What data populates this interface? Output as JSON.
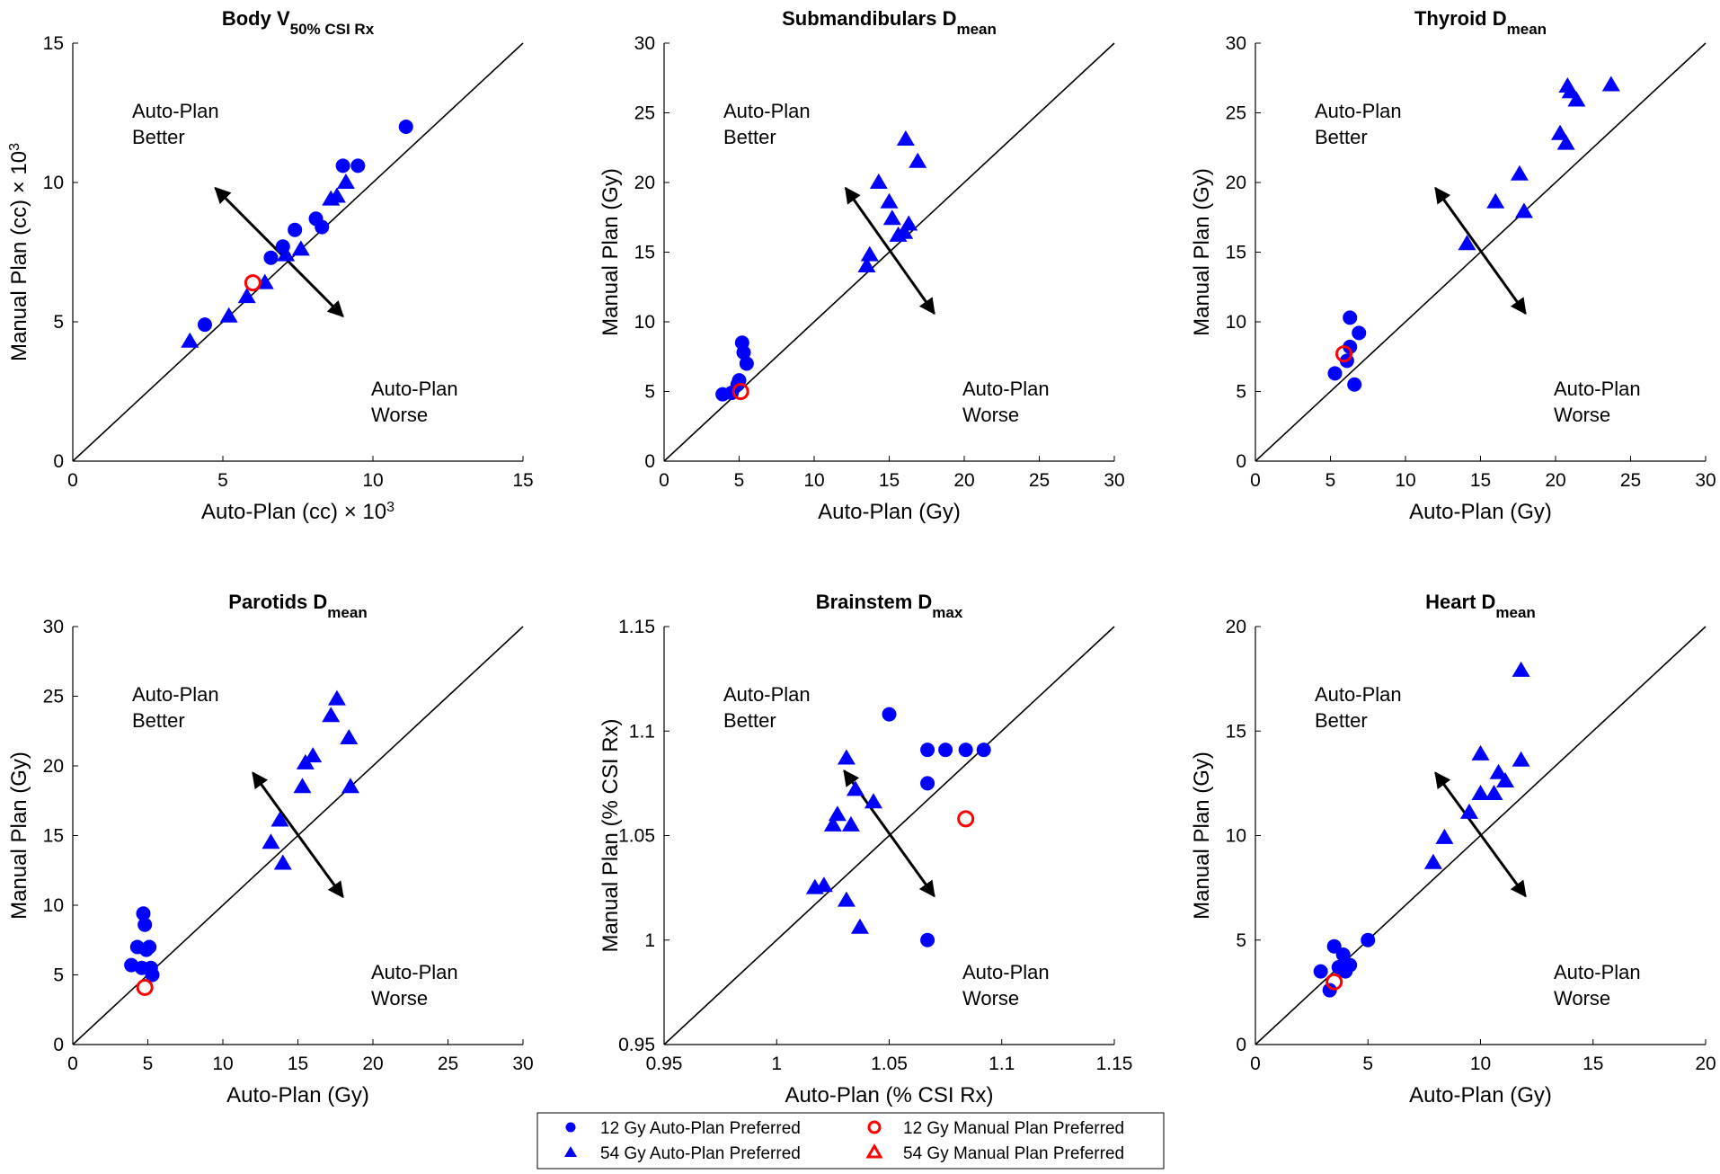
{
  "colors": {
    "auto_preferred": "#0000ff",
    "manual_preferred": "#ff0000",
    "axis": "#000000"
  },
  "legend": {
    "items": [
      {
        "label": "12 Gy Auto-Plan Preferred",
        "marker": "circle",
        "fill": "#0000ff",
        "filled": true
      },
      {
        "label": "12 Gy Manual Plan Preferred",
        "marker": "circle",
        "fill": "#ff0000",
        "filled": false
      },
      {
        "label": "54 Gy Auto-Plan Preferred",
        "marker": "triangle",
        "fill": "#0000ff",
        "filled": true
      },
      {
        "label": "54 Gy Manual Plan Preferred",
        "marker": "triangle",
        "fill": "#ff0000",
        "filled": false
      }
    ]
  },
  "chart_data": [
    {
      "type": "scatter",
      "title": "Body V",
      "title_sub": "50% CSI Rx",
      "xlabel": "Auto-Plan (cc) × 10",
      "xlabel_sup": "3",
      "ylabel": "Manual Plan (cc) × 10",
      "ylabel_sup": "3",
      "xlim": [
        0,
        15
      ],
      "ylim": [
        0,
        15
      ],
      "xticks": [
        0,
        5,
        10,
        15
      ],
      "yticks": [
        0,
        5,
        10,
        15
      ],
      "xtick_labels": [
        "0",
        "5",
        "10",
        "15"
      ],
      "ytick_labels": [
        "0",
        "5",
        "10",
        "15"
      ],
      "annot_better": [
        "Auto-Plan",
        "Better"
      ],
      "annot_worse": [
        "Auto-Plan",
        "Worse"
      ],
      "arrow": {
        "center": [
          6.75,
          6.75
        ],
        "upper_left": [
          4.75,
          9.8
        ],
        "lower_right": [
          9.0,
          5.2
        ]
      },
      "series": [
        {
          "name": "12 Gy Auto-Plan Preferred",
          "marker": "circle",
          "filled": true,
          "x": [
            4.4,
            6.6,
            7.0,
            7.4,
            8.1,
            8.3,
            9.0,
            9.5,
            11.1
          ],
          "y": [
            4.9,
            7.3,
            7.7,
            8.3,
            8.7,
            8.4,
            10.6,
            10.6,
            12.0
          ]
        },
        {
          "name": "54 Gy Auto-Plan Preferred",
          "marker": "triangle",
          "filled": true,
          "x": [
            3.9,
            5.2,
            5.8,
            6.4,
            7.1,
            7.6,
            8.6,
            8.8,
            9.1
          ],
          "y": [
            4.3,
            5.2,
            5.9,
            6.4,
            7.4,
            7.6,
            9.4,
            9.5,
            10.0
          ]
        },
        {
          "name": "12 Gy Manual Plan Preferred",
          "marker": "circle",
          "filled": false,
          "x": [
            6.0
          ],
          "y": [
            6.4
          ]
        }
      ]
    },
    {
      "type": "scatter",
      "title": "Submandibulars D",
      "title_sub": "mean",
      "xlabel": "Auto-Plan (Gy)",
      "xlabel_sup": "",
      "ylabel": "Manual Plan (Gy)",
      "ylabel_sup": "",
      "xlim": [
        0,
        30
      ],
      "ylim": [
        0,
        30
      ],
      "xticks": [
        0,
        5,
        10,
        15,
        20,
        25,
        30
      ],
      "yticks": [
        0,
        5,
        10,
        15,
        20,
        25,
        30
      ],
      "xtick_labels": [
        "0",
        "5",
        "10",
        "15",
        "20",
        "25",
        "30"
      ],
      "ytick_labels": [
        "0",
        "5",
        "10",
        "15",
        "20",
        "25",
        "30"
      ],
      "annot_better": [
        "Auto-Plan",
        "Better"
      ],
      "annot_worse": [
        "Auto-Plan",
        "Worse"
      ],
      "arrow": {
        "center": [
          15,
          15
        ],
        "upper_left": [
          12.1,
          19.6
        ],
        "lower_right": [
          18.0,
          10.6
        ]
      },
      "series": [
        {
          "name": "12 Gy Auto-Plan Preferred",
          "marker": "circle",
          "filled": true,
          "x": [
            3.9,
            4.5,
            4.9,
            5.0,
            5.2,
            5.3,
            5.5
          ],
          "y": [
            4.8,
            4.9,
            5.5,
            5.8,
            8.5,
            7.8,
            7.0
          ]
        },
        {
          "name": "54 Gy Auto-Plan Preferred",
          "marker": "triangle",
          "filled": true,
          "x": [
            13.5,
            13.7,
            14.3,
            15.0,
            15.2,
            15.6,
            16.0,
            16.1,
            16.3,
            16.9
          ],
          "y": [
            14.0,
            14.8,
            20.0,
            18.6,
            17.4,
            16.2,
            16.4,
            23.1,
            17.0,
            21.5
          ]
        },
        {
          "name": "12 Gy Manual Plan Preferred",
          "marker": "circle",
          "filled": false,
          "x": [
            5.1
          ],
          "y": [
            5.0
          ]
        }
      ]
    },
    {
      "type": "scatter",
      "title": "Thyroid D",
      "title_sub": "mean",
      "xlabel": "Auto-Plan (Gy)",
      "xlabel_sup": "",
      "ylabel": "Manual Plan (Gy)",
      "ylabel_sup": "",
      "xlim": [
        0,
        30
      ],
      "ylim": [
        0,
        30
      ],
      "xticks": [
        0,
        5,
        10,
        15,
        20,
        25,
        30
      ],
      "yticks": [
        0,
        5,
        10,
        15,
        20,
        25,
        30
      ],
      "xtick_labels": [
        "0",
        "5",
        "10",
        "15",
        "20",
        "25",
        "30"
      ],
      "ytick_labels": [
        "0",
        "5",
        "10",
        "15",
        "20",
        "25",
        "30"
      ],
      "annot_better": [
        "Auto-Plan",
        "Better"
      ],
      "annot_worse": [
        "Auto-Plan",
        "Worse"
      ],
      "arrow": {
        "center": [
          15,
          15
        ],
        "upper_left": [
          12.0,
          19.6
        ],
        "lower_right": [
          18.0,
          10.6
        ]
      },
      "series": [
        {
          "name": "12 Gy Auto-Plan Preferred",
          "marker": "circle",
          "filled": true,
          "x": [
            5.3,
            6.1,
            6.3,
            6.3,
            6.6,
            6.9
          ],
          "y": [
            6.3,
            7.2,
            10.3,
            8.2,
            5.5,
            9.2
          ]
        },
        {
          "name": "54 Gy Auto-Plan Preferred",
          "marker": "triangle",
          "filled": true,
          "x": [
            14.1,
            16.0,
            17.6,
            17.9,
            20.3,
            20.7,
            20.8,
            21.0,
            21.4,
            23.7
          ],
          "y": [
            15.6,
            18.6,
            20.6,
            17.9,
            23.5,
            22.8,
            26.9,
            26.5,
            25.9,
            27.0
          ]
        },
        {
          "name": "12 Gy Manual Plan Preferred",
          "marker": "circle",
          "filled": false,
          "x": [
            5.9
          ],
          "y": [
            7.7
          ]
        }
      ]
    },
    {
      "type": "scatter",
      "title": "Parotids D",
      "title_sub": "mean",
      "xlabel": "Auto-Plan (Gy)",
      "xlabel_sup": "",
      "ylabel": "Manual Plan (Gy)",
      "ylabel_sup": "",
      "xlim": [
        0,
        30
      ],
      "ylim": [
        0,
        30
      ],
      "xticks": [
        0,
        5,
        10,
        15,
        20,
        25,
        30
      ],
      "yticks": [
        0,
        5,
        10,
        15,
        20,
        25,
        30
      ],
      "xtick_labels": [
        "0",
        "5",
        "10",
        "15",
        "20",
        "25",
        "30"
      ],
      "ytick_labels": [
        "0",
        "5",
        "10",
        "15",
        "20",
        "25",
        "30"
      ],
      "annot_better": [
        "Auto-Plan",
        "Better"
      ],
      "annot_worse": [
        "Auto-Plan",
        "Worse"
      ],
      "arrow": {
        "center": [
          15,
          15
        ],
        "upper_left": [
          12.0,
          19.5
        ],
        "lower_right": [
          18.0,
          10.6
        ]
      },
      "series": [
        {
          "name": "12 Gy Auto-Plan Preferred",
          "marker": "circle",
          "filled": true,
          "x": [
            3.9,
            4.3,
            4.6,
            4.7,
            4.8,
            4.9,
            5.1,
            5.2,
            5.3
          ],
          "y": [
            5.7,
            7.0,
            5.5,
            9.4,
            8.6,
            6.8,
            7.0,
            5.5,
            5.0
          ]
        },
        {
          "name": "54 Gy Auto-Plan Preferred",
          "marker": "triangle",
          "filled": true,
          "x": [
            13.2,
            13.8,
            14.0,
            15.3,
            15.5,
            16.0,
            17.2,
            17.6,
            18.4,
            18.5
          ],
          "y": [
            14.5,
            16.1,
            13.0,
            18.5,
            20.2,
            20.7,
            23.6,
            24.8,
            22.0,
            18.5
          ]
        },
        {
          "name": "12 Gy Manual Plan Preferred",
          "marker": "circle",
          "filled": false,
          "x": [
            4.8
          ],
          "y": [
            4.1
          ]
        }
      ]
    },
    {
      "type": "scatter",
      "title": "Brainstem D",
      "title_sub": "max",
      "xlabel": "Auto-Plan (% CSI Rx)",
      "xlabel_sup": "",
      "ylabel": "Manual Plan (% CSI Rx)",
      "ylabel_sup": "",
      "xlim": [
        0.95,
        1.15
      ],
      "ylim": [
        0.95,
        1.15
      ],
      "xticks": [
        0.95,
        1.0,
        1.05,
        1.1,
        1.15
      ],
      "yticks": [
        0.95,
        1.0,
        1.05,
        1.1,
        1.15
      ],
      "xtick_labels": [
        "0.95",
        "1",
        "1.05",
        "1.1",
        "1.15"
      ],
      "ytick_labels": [
        "0.95",
        "1",
        "1.05",
        "1.1",
        "1.15"
      ],
      "annot_better": [
        "Auto-Plan",
        "Better"
      ],
      "annot_worse": [
        "Auto-Plan",
        "Worse"
      ],
      "arrow": {
        "center": [
          1.05,
          1.05
        ],
        "upper_left": [
          1.03,
          1.081
        ],
        "lower_right": [
          1.07,
          1.021
        ]
      },
      "series": [
        {
          "name": "12 Gy Auto-Plan Preferred",
          "marker": "circle",
          "filled": true,
          "x": [
            1.05,
            1.067,
            1.067,
            1.075,
            1.084,
            1.092,
            1.067
          ],
          "y": [
            1.108,
            1.091,
            1.075,
            1.091,
            1.091,
            1.091,
            1.0
          ]
        },
        {
          "name": "54 Gy Auto-Plan Preferred",
          "marker": "triangle",
          "filled": true,
          "x": [
            1.017,
            1.021,
            1.025,
            1.027,
            1.031,
            1.031,
            1.033,
            1.035,
            1.037,
            1.043
          ],
          "y": [
            1.025,
            1.026,
            1.055,
            1.06,
            1.087,
            1.019,
            1.055,
            1.072,
            1.006,
            1.066
          ]
        },
        {
          "name": "12 Gy Manual Plan Preferred",
          "marker": "circle",
          "filled": false,
          "x": [
            1.084
          ],
          "y": [
            1.058
          ]
        }
      ]
    },
    {
      "type": "scatter",
      "title": "Heart D",
      "title_sub": "mean",
      "xlabel": "Auto-Plan (Gy)",
      "xlabel_sup": "",
      "ylabel": "Manual Plan (Gy)",
      "ylabel_sup": "",
      "xlim": [
        0,
        20
      ],
      "ylim": [
        0,
        20
      ],
      "xticks": [
        0,
        5,
        10,
        15,
        20
      ],
      "yticks": [
        0,
        5,
        10,
        15,
        20
      ],
      "xtick_labels": [
        "0",
        "5",
        "10",
        "15",
        "20"
      ],
      "ytick_labels": [
        "0",
        "5",
        "10",
        "15",
        "20"
      ],
      "annot_better": [
        "Auto-Plan",
        "Better"
      ],
      "annot_worse": [
        "Auto-Plan",
        "Worse"
      ],
      "arrow": {
        "center": [
          10,
          10
        ],
        "upper_left": [
          8.0,
          13.0
        ],
        "lower_right": [
          12.0,
          7.1
        ]
      },
      "series": [
        {
          "name": "12 Gy Auto-Plan Preferred",
          "marker": "circle",
          "filled": true,
          "x": [
            2.9,
            3.3,
            3.5,
            3.7,
            3.9,
            4.0,
            4.2,
            5.0
          ],
          "y": [
            3.5,
            2.6,
            4.7,
            3.7,
            4.3,
            3.5,
            3.8,
            5.0
          ]
        },
        {
          "name": "54 Gy Auto-Plan Preferred",
          "marker": "triangle",
          "filled": true,
          "x": [
            7.9,
            8.4,
            9.5,
            10.0,
            10.0,
            10.6,
            10.8,
            11.1,
            11.8,
            11.8
          ],
          "y": [
            8.7,
            9.9,
            11.1,
            13.9,
            12.0,
            12.0,
            13.0,
            12.6,
            13.6,
            17.9
          ]
        },
        {
          "name": "12 Gy Manual Plan Preferred",
          "marker": "circle",
          "filled": false,
          "x": [
            3.5
          ],
          "y": [
            3.0
          ]
        }
      ]
    }
  ]
}
